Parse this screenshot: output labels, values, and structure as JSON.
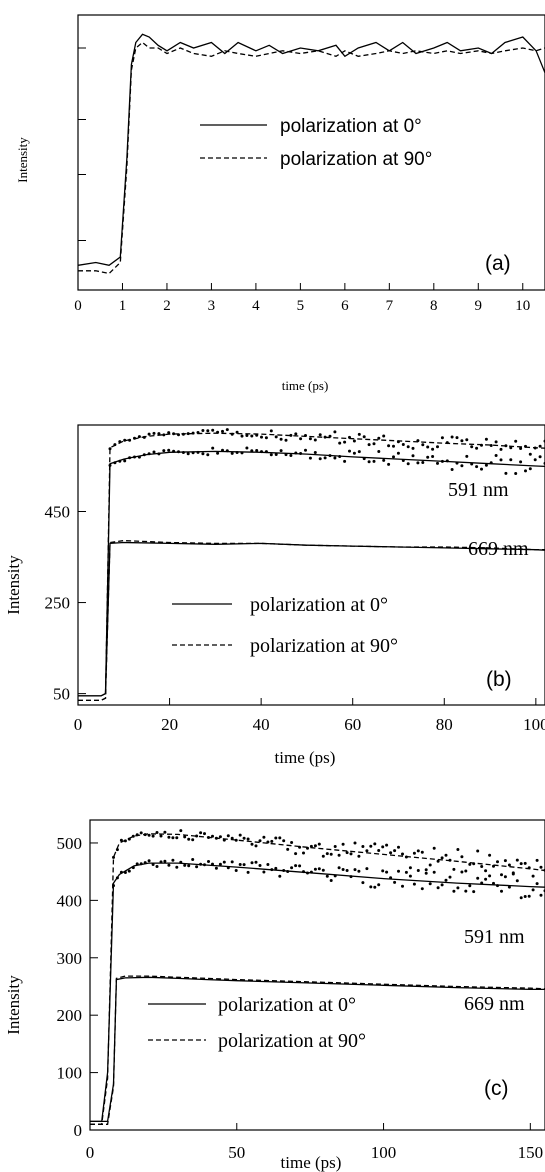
{
  "chart_data": [
    {
      "type": "line",
      "panel_label": "(a)",
      "xlabel": "time (ps)",
      "ylabel": "Intensity",
      "xlim": [
        0,
        10.5
      ],
      "ylim": [
        0,
        1.0
      ],
      "x_ticks": [
        0,
        1,
        2,
        3,
        4,
        5,
        6,
        7,
        8,
        9,
        10
      ],
      "x_tick_labels": [
        "0",
        "1",
        "2",
        "3",
        "4",
        "5",
        "6",
        "7",
        "8",
        "9",
        "10"
      ],
      "y_ticks": [],
      "y_tick_labels": [],
      "legend": {
        "placement": "center-right",
        "entries": [
          "polarization at 0°",
          "polarization at 90°"
        ]
      },
      "annotations": [],
      "series": [
        {
          "name": "polarization at 0°",
          "style": "solid",
          "x": [
            0,
            0.4,
            0.7,
            0.95,
            1.1,
            1.2,
            1.3,
            1.45,
            1.6,
            1.8,
            2.0,
            2.3,
            2.6,
            3.0,
            3.3,
            3.6,
            4.0,
            4.3,
            4.6,
            5.0,
            5.4,
            5.8,
            6.0,
            6.3,
            6.7,
            7.0,
            7.3,
            7.6,
            8.0,
            8.3,
            8.6,
            9.0,
            9.3,
            9.6,
            10.0,
            10.3,
            10.5
          ],
          "y": [
            0.09,
            0.1,
            0.09,
            0.12,
            0.48,
            0.82,
            0.9,
            0.93,
            0.92,
            0.89,
            0.87,
            0.9,
            0.88,
            0.9,
            0.86,
            0.9,
            0.87,
            0.89,
            0.86,
            0.88,
            0.87,
            0.89,
            0.85,
            0.88,
            0.9,
            0.87,
            0.9,
            0.86,
            0.88,
            0.9,
            0.87,
            0.88,
            0.86,
            0.9,
            0.92,
            0.87,
            0.79
          ]
        },
        {
          "name": "polarization at 90°",
          "style": "dashed",
          "x": [
            0,
            0.4,
            0.7,
            0.95,
            1.1,
            1.2,
            1.3,
            1.45,
            1.6,
            1.8,
            2.0,
            2.3,
            2.6,
            3.0,
            3.3,
            3.6,
            4.0,
            4.3,
            4.6,
            5.0,
            5.4,
            5.8,
            6.0,
            6.3,
            6.7,
            7.0,
            7.3,
            7.6,
            8.0,
            8.3,
            8.6,
            9.0,
            9.3,
            9.6,
            10.0,
            10.3,
            10.5
          ],
          "y": [
            0.07,
            0.07,
            0.06,
            0.1,
            0.45,
            0.8,
            0.88,
            0.9,
            0.88,
            0.88,
            0.86,
            0.88,
            0.86,
            0.85,
            0.87,
            0.86,
            0.85,
            0.86,
            0.87,
            0.86,
            0.87,
            0.85,
            0.87,
            0.85,
            0.86,
            0.87,
            0.86,
            0.87,
            0.86,
            0.87,
            0.86,
            0.87,
            0.86,
            0.87,
            0.88,
            0.87,
            0.88
          ]
        }
      ]
    },
    {
      "type": "scatter",
      "panel_label": "(b)",
      "xlabel": "time (ps)",
      "ylabel": "Intensity",
      "xlim": [
        0,
        102
      ],
      "ylim": [
        25,
        640
      ],
      "x_ticks": [
        0,
        20,
        40,
        60,
        80,
        100
      ],
      "x_tick_labels": [
        "0",
        "20",
        "40",
        "60",
        "80",
        "100"
      ],
      "y_ticks": [
        50,
        250,
        450
      ],
      "y_tick_labels": [
        "50",
        "250",
        "450"
      ],
      "legend": {
        "placement": "lower-center",
        "entries": [
          "polarization at 0°",
          "polarization at 90°"
        ]
      },
      "annotations": [
        "591 nm",
        "669 nm"
      ],
      "series": [
        {
          "name": "polarization at 0°",
          "style": "solid",
          "x": [
            0,
            5,
            6,
            7,
            10,
            15,
            20,
            30,
            40,
            50,
            60,
            70,
            80,
            90,
            100,
            102
          ],
          "y": [
            45,
            45,
            50,
            555,
            565,
            575,
            580,
            582,
            580,
            576,
            570,
            565,
            560,
            555,
            550,
            549
          ]
        },
        {
          "name": "polarization at 90°",
          "style": "dashed",
          "x": [
            0,
            5,
            6,
            7,
            10,
            15,
            20,
            30,
            40,
            50,
            60,
            70,
            80,
            90,
            100,
            102
          ],
          "y": [
            35,
            35,
            40,
            590,
            605,
            615,
            620,
            622,
            620,
            615,
            610,
            605,
            600,
            596,
            590,
            589
          ]
        },
        {
          "name": "",
          "style": "solid",
          "x": [
            0,
            5,
            6,
            7,
            10,
            20,
            30,
            40,
            50,
            60,
            70,
            80,
            90,
            100,
            102
          ],
          "y": [
            45,
            45,
            50,
            380,
            382,
            380,
            378,
            380,
            376,
            374,
            372,
            370,
            368,
            366,
            365
          ]
        },
        {
          "name": "",
          "style": "dashed",
          "x": [
            0,
            5,
            6,
            7,
            10,
            20,
            30,
            40,
            50,
            60,
            70,
            80,
            90,
            100,
            102
          ],
          "y": [
            35,
            35,
            40,
            382,
            386,
            382,
            380,
            380,
            376,
            374,
            372,
            372,
            370,
            366,
            366
          ]
        }
      ]
    },
    {
      "type": "scatter",
      "panel_label": "(c)",
      "xlabel": "time (ps)",
      "ylabel": "Intensity",
      "xlim": [
        0,
        155
      ],
      "ylim": [
        0,
        540
      ],
      "x_ticks": [
        0,
        50,
        100,
        150
      ],
      "x_tick_labels": [
        "0",
        "50",
        "100",
        "150"
      ],
      "y_ticks": [
        0,
        100,
        200,
        300,
        400,
        500
      ],
      "y_tick_labels": [
        "0",
        "100",
        "200",
        "300",
        "400",
        "500"
      ],
      "legend": {
        "placement": "lower-left",
        "entries": [
          "polarization at 0°",
          "polarization at 90°"
        ]
      },
      "annotations": [
        "591 nm",
        "669 nm"
      ],
      "series": [
        {
          "name": "polarization at 0°",
          "style": "solid",
          "x": [
            0,
            4,
            6,
            8,
            10,
            15,
            20,
            30,
            50,
            75,
            100,
            125,
            150,
            155
          ],
          "y": [
            15,
            15,
            100,
            430,
            445,
            460,
            465,
            465,
            458,
            448,
            438,
            430,
            424,
            423
          ]
        },
        {
          "name": "polarization at 90°",
          "style": "dashed",
          "x": [
            0,
            4,
            6,
            8,
            10,
            15,
            20,
            30,
            50,
            75,
            100,
            125,
            150,
            155
          ],
          "y": [
            10,
            10,
            90,
            475,
            500,
            512,
            516,
            515,
            505,
            492,
            480,
            468,
            455,
            452
          ]
        },
        {
          "name": "",
          "style": "solid",
          "x": [
            0,
            6,
            8,
            9,
            12,
            20,
            30,
            40,
            50,
            75,
            100,
            125,
            150,
            155
          ],
          "y": [
            15,
            15,
            80,
            262,
            265,
            266,
            264,
            262,
            260,
            256,
            252,
            248,
            245,
            245
          ]
        },
        {
          "name": "",
          "style": "dashed",
          "x": [
            0,
            6,
            8,
            9,
            12,
            20,
            30,
            40,
            50,
            75,
            100,
            125,
            150,
            155
          ],
          "y": [
            10,
            10,
            75,
            264,
            268,
            268,
            266,
            264,
            262,
            258,
            254,
            250,
            247,
            246
          ]
        }
      ]
    }
  ]
}
